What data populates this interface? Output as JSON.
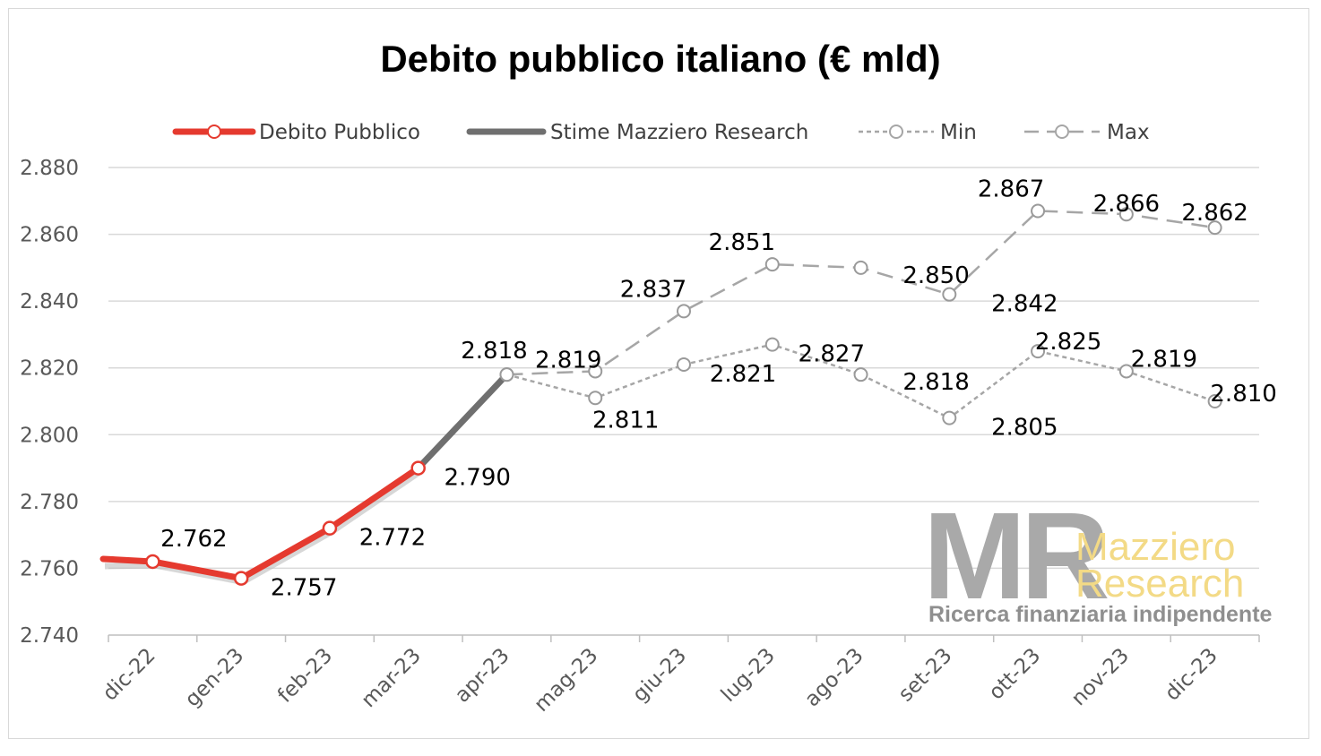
{
  "chart_data": {
    "type": "line",
    "title": "Debito pubblico italiano (€ mld)",
    "categories": [
      "dic-22",
      "gen-23",
      "feb-23",
      "mar-23",
      "apr-23",
      "mag-23",
      "giu-23",
      "lug-23",
      "ago-23",
      "set-23",
      "ott-23",
      "nov-23",
      "dic-23"
    ],
    "ylim": [
      2740,
      2880
    ],
    "yticks": [
      2740,
      2760,
      2780,
      2800,
      2820,
      2840,
      2860,
      2880
    ],
    "ytick_labels": [
      "2.740",
      "2.760",
      "2.780",
      "2.800",
      "2.820",
      "2.840",
      "2.860",
      "2.880"
    ],
    "grid": true,
    "legend_position": "top",
    "series": [
      {
        "name": "Debito Pubblico",
        "color": "#e53a2f",
        "style": "solid-thick",
        "marker": "circle-white",
        "values": [
          2762,
          2757,
          2772,
          2790,
          null,
          null,
          null,
          null,
          null,
          null,
          null,
          null,
          null
        ]
      },
      {
        "name": "Stime Mazziero Research",
        "color": "#6f6f6f",
        "style": "solid-thick",
        "marker": "none",
        "values": [
          null,
          null,
          null,
          2790,
          2818,
          null,
          null,
          null,
          null,
          null,
          null,
          null,
          null
        ]
      },
      {
        "name": "Min",
        "color": "#a6a6a6",
        "style": "dotted",
        "marker": "circle-open",
        "values": [
          null,
          null,
          null,
          null,
          2818,
          2811,
          2821,
          2827,
          2818,
          2805,
          2825,
          2819,
          2810
        ]
      },
      {
        "name": "Max",
        "color": "#a6a6a6",
        "style": "dashed",
        "marker": "circle-open",
        "values": [
          null,
          null,
          null,
          null,
          2818,
          2819,
          2837,
          2851,
          2850,
          2842,
          2867,
          2866,
          2862
        ]
      }
    ],
    "data_labels": [
      {
        "text": "2.762"
      },
      {
        "text": "2.757"
      },
      {
        "text": "2.772"
      },
      {
        "text": "2.790"
      },
      {
        "text": "2.818"
      },
      {
        "text": "2.819"
      },
      {
        "text": "2.837"
      },
      {
        "text": "2.851"
      },
      {
        "text": "2.850"
      },
      {
        "text": "2.842"
      },
      {
        "text": "2.867"
      },
      {
        "text": "2.866"
      },
      {
        "text": "2.862"
      },
      {
        "text": "2.811"
      },
      {
        "text": "2.821"
      },
      {
        "text": "2.827"
      },
      {
        "text": "2.818"
      },
      {
        "text": "2.805"
      },
      {
        "text": "2.825"
      },
      {
        "text": "2.819"
      },
      {
        "text": "2.810"
      }
    ]
  },
  "watermark": {
    "logo_letters": "MR",
    "brand_line1": "Mazziero",
    "brand_line2": "Research",
    "tagline": "Ricerca finanziaria indipendente"
  }
}
